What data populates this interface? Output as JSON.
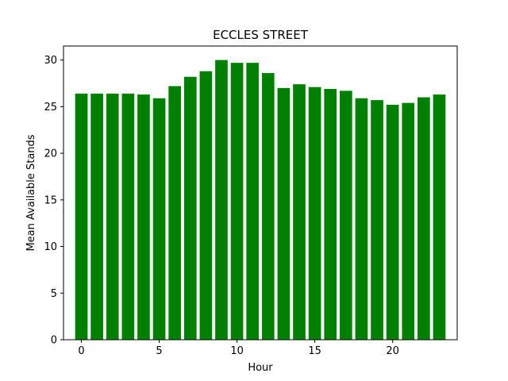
{
  "chart_data": {
    "type": "bar",
    "title": "ECCLES STREET",
    "xlabel": "Hour",
    "ylabel": "Mean Available Stands",
    "x": [
      0,
      1,
      2,
      3,
      4,
      5,
      6,
      7,
      8,
      9,
      10,
      11,
      12,
      13,
      14,
      15,
      16,
      17,
      18,
      19,
      20,
      21,
      22,
      23
    ],
    "values": [
      26.4,
      26.4,
      26.4,
      26.4,
      26.3,
      25.9,
      27.2,
      28.2,
      28.8,
      30.0,
      29.7,
      29.7,
      28.6,
      27.0,
      27.4,
      27.1,
      26.9,
      26.7,
      25.9,
      25.7,
      25.2,
      25.4,
      26.0,
      26.3
    ],
    "xlim": [
      -1.15,
      24.15
    ],
    "ylim": [
      0,
      31.5
    ],
    "xticks": [
      0,
      5,
      10,
      15,
      20
    ],
    "yticks": [
      0,
      5,
      10,
      15,
      20,
      25,
      30
    ],
    "bar_color": "#008000",
    "grid": false,
    "legend": "none"
  }
}
